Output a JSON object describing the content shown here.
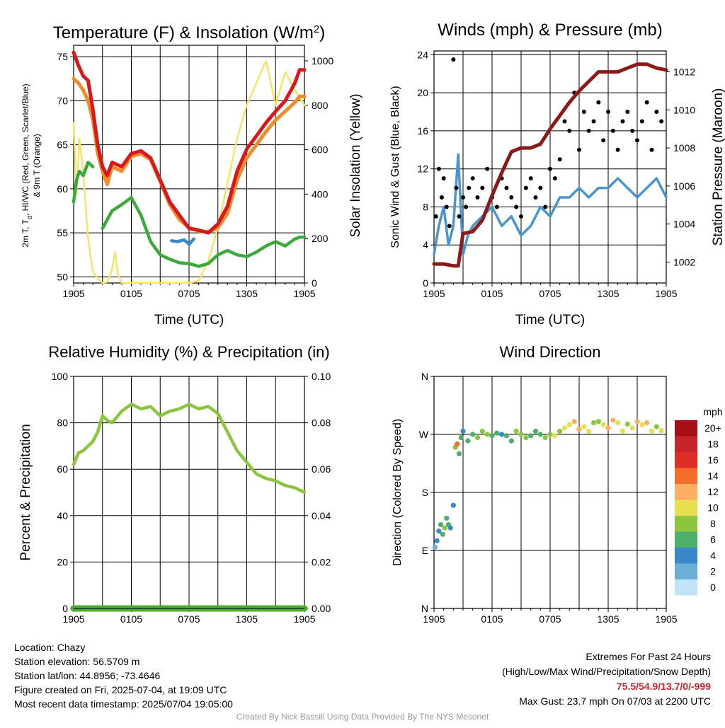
{
  "credit": "Created By Nick Bassill Using Data Provided By The NYS Mesonet",
  "station_info": {
    "location": "Location: Chazy",
    "elevation": "Station elevation: 56.5709 m",
    "latlon": "Station lat/lon: 44.8956; -73.4646",
    "created": "Figure created on Fri, 2025-07-04, at 19:09 UTC",
    "recent": "Most recent data timestamp: 2025/07/04 19:05:00"
  },
  "extremes": {
    "heading": "Extremes For Past 24 Hours",
    "legend": "(High/Low/Max Wind/Precipitation/Snow Depth)",
    "values": "75.5/54.9/13.7/0/-999",
    "gust": "Max Gust: 23.7 mph On 07/03 at 2200 UTC"
  },
  "colors": {
    "temperature": "#d7191c",
    "heat_index": "#f46d2a",
    "dewpoint": "#3aab3a",
    "nine_m_temp": "#f28c28",
    "wind_chill": "#3a87c9",
    "insolation": "#f7e36b",
    "sonic_wind": "#4a95d0",
    "gust": "#000000",
    "pressure": "#8b1a1a",
    "humidity": "#8cc63f",
    "precipitation": "#4caf2f"
  },
  "chart_data": [
    {
      "type": "line",
      "title": "Temperature (F) & Insolation (W/m²)",
      "xlabel": "Time (UTC)",
      "ylabel": "2m T, T_d, HI/WC (Red, Green, Scarlet/Blue) & 9m T (Orange)",
      "y2label": "Solar Insolation (Yellow)",
      "x_ticks": [
        "1905",
        "0105",
        "0705",
        "1305",
        "1905"
      ],
      "y_ticks": [
        50,
        55,
        60,
        65,
        70,
        75
      ],
      "y2_ticks": [
        0,
        200,
        400,
        600,
        800,
        1000
      ],
      "ylim": [
        49.3,
        76.3
      ],
      "y2lim": [
        0,
        1070
      ],
      "xlim": [
        0,
        24
      ],
      "series": [
        {
          "name": "2m Temperature",
          "axis": "y",
          "x": [
            0,
            0.5,
            1,
            1.5,
            2,
            2.5,
            3,
            3.5,
            4,
            5,
            6,
            7,
            8,
            9,
            10,
            11,
            12,
            13,
            14,
            15,
            16,
            17,
            18,
            19,
            20,
            21,
            22,
            23,
            23.5,
            24
          ],
          "values": [
            75.5,
            74,
            72.8,
            72.3,
            69,
            65,
            62.5,
            61.5,
            63,
            62.5,
            64,
            64.3,
            63.5,
            61,
            58.5,
            57,
            55.5,
            55.3,
            55,
            56,
            58,
            62,
            64.5,
            66,
            67.5,
            68.8,
            70,
            72,
            73.5,
            73.5
          ]
        },
        {
          "name": "9m Temperature",
          "axis": "y",
          "x": [
            0,
            0.5,
            1,
            1.5,
            2,
            2.5,
            3,
            3.5,
            4,
            5,
            6,
            7,
            8,
            9,
            10,
            11,
            12,
            13,
            14,
            15,
            16,
            17,
            18,
            19,
            20,
            21,
            22,
            23,
            23.5,
            24
          ],
          "values": [
            72.5,
            72,
            71.2,
            70,
            67.8,
            64,
            62,
            60.5,
            62.5,
            62,
            63.7,
            64,
            63.3,
            60.8,
            58.2,
            56.5,
            55.6,
            55.2,
            55.1,
            55.6,
            57.2,
            61,
            63.5,
            65,
            66.5,
            67.8,
            68.8,
            69.8,
            70.5,
            70.5
          ]
        },
        {
          "name": "2m Dewpoint",
          "axis": "y",
          "x": [
            0,
            0.3,
            0.6,
            1,
            1.5,
            2,
            2.6,
            3,
            3.5,
            4,
            5,
            6,
            7,
            8,
            9,
            10,
            11,
            12,
            13,
            14,
            15,
            16,
            17,
            18,
            19,
            20,
            21,
            22,
            23,
            23.5,
            24
          ],
          "values": [
            58.5,
            61,
            62,
            61.5,
            63,
            62.5,
            null,
            55.5,
            56.5,
            57.5,
            58.2,
            59,
            57,
            54,
            52.5,
            52,
            51.6,
            51.5,
            51.2,
            51.5,
            52.5,
            53,
            52.5,
            52.3,
            52.8,
            53.5,
            54,
            53.5,
            54.3,
            54.5,
            54.5
          ]
        },
        {
          "name": "Heat Index / Wind Chill",
          "axis": "y",
          "x": [
            10.2,
            10.8,
            11.5,
            12,
            12.5
          ],
          "values": [
            54.1,
            54,
            54.2,
            53.7,
            54.3
          ]
        },
        {
          "name": "Solar Insolation",
          "axis": "y2",
          "x": [
            0,
            0.3,
            0.6,
            1,
            1.5,
            2,
            2.5,
            3,
            3.5,
            4,
            4.3,
            4.6,
            5,
            6,
            7,
            8,
            9,
            10,
            11,
            12,
            13,
            14,
            15,
            16,
            17,
            18,
            19,
            20,
            21,
            22,
            23,
            24
          ],
          "values": [
            720,
            400,
            650,
            500,
            200,
            50,
            20,
            0,
            5,
            60,
            140,
            40,
            0,
            0,
            0,
            0,
            0,
            0,
            0,
            0,
            10,
            100,
            250,
            450,
            650,
            800,
            900,
            1000,
            800,
            950,
            870,
            800
          ]
        }
      ]
    },
    {
      "type": "line",
      "title": "Winds (mph) & Pressure (mb)",
      "xlabel": "Time (UTC)",
      "ylabel": "Sonic Wind & Gust (Blue, Black)",
      "y2label": "Station Pressure (Maroon)",
      "x_ticks": [
        "1905",
        "0105",
        "0705",
        "1305",
        "1905"
      ],
      "y_ticks": [
        0,
        4,
        8,
        12,
        16,
        20,
        24
      ],
      "y2_ticks": [
        1002,
        1004,
        1006,
        1008,
        1010,
        1012
      ],
      "ylim": [
        0,
        24.4
      ],
      "y2lim": [
        1000.9,
        1013.1
      ],
      "xlim": [
        0,
        24
      ],
      "series": [
        {
          "name": "Sonic Wind",
          "axis": "y",
          "x": [
            0,
            0.5,
            1,
            1.5,
            2,
            2.5,
            3,
            3.5,
            4,
            5,
            6,
            7,
            8,
            9,
            10,
            11,
            12,
            13,
            14,
            15,
            16,
            17,
            18,
            19,
            20,
            21,
            22,
            23,
            24
          ],
          "values": [
            3,
            6,
            8,
            4,
            6,
            13.5,
            3,
            5,
            6,
            7,
            8,
            6,
            7,
            5,
            6,
            8,
            7,
            9,
            9,
            10,
            9,
            10,
            10,
            11,
            10,
            9,
            10,
            11,
            9
          ]
        },
        {
          "name": "Gust",
          "axis": "y",
          "x": [
            0.2,
            0.5,
            0.8,
            1,
            1.3,
            1.6,
            2,
            2.3,
            2.6,
            3,
            3.3,
            3.6,
            4,
            4.5,
            5,
            5.5,
            6,
            6.5,
            7,
            7.5,
            8,
            8.5,
            9,
            9.5,
            10,
            10.5,
            11,
            11.5,
            12,
            12.5,
            13,
            13.5,
            14,
            14.5,
            15,
            15.5,
            16,
            16.5,
            17,
            17.5,
            18,
            18.5,
            19,
            19.5,
            20,
            20.5,
            21,
            21.5,
            22,
            22.5,
            23,
            23.5
          ],
          "values": [
            7,
            12,
            9,
            11,
            8,
            6,
            23.5,
            10,
            7,
            9,
            8,
            10,
            11,
            9,
            10,
            12,
            9,
            8,
            11,
            10,
            9,
            8,
            7,
            10,
            11,
            9,
            10,
            8,
            12,
            11,
            13,
            17,
            16,
            20,
            14,
            18,
            16,
            17,
            19,
            15,
            18,
            16,
            14,
            17,
            18,
            16,
            15,
            17,
            19,
            14,
            18,
            17
          ]
        },
        {
          "name": "Station Pressure",
          "axis": "y2",
          "x": [
            0,
            1,
            2,
            2.5,
            3,
            4,
            5,
            6,
            7,
            8,
            9,
            10,
            11,
            12,
            13,
            14,
            15,
            16,
            17,
            18,
            19,
            20,
            21,
            22,
            23,
            24
          ],
          "values": [
            1001.9,
            1001.9,
            1001.8,
            1001.8,
            1003.5,
            1003.6,
            1004.2,
            1005.5,
            1006.7,
            1007.8,
            1008,
            1008,
            1008.2,
            1009,
            1009.7,
            1010.4,
            1011,
            1011.5,
            1012,
            1012,
            1012,
            1012.2,
            1012.4,
            1012.4,
            1012.2,
            1012.1
          ]
        }
      ]
    },
    {
      "type": "line",
      "title": "Relative Humidity (%) & Precipitation (in)",
      "xlabel": "",
      "ylabel": "Percent & Precipitation",
      "x_ticks": [
        "1905",
        "0105",
        "0705",
        "1305",
        "1905"
      ],
      "y_ticks": [
        0,
        20,
        40,
        60,
        80,
        100
      ],
      "y2_ticks": [
        "0.00",
        "0.02",
        "0.04",
        "0.06",
        "0.08",
        "0.10"
      ],
      "ylim": [
        0,
        100
      ],
      "y2lim": [
        0,
        0.1
      ],
      "xlim": [
        0,
        24
      ],
      "series": [
        {
          "name": "Relative Humidity",
          "axis": "y",
          "x": [
            0,
            0.5,
            1,
            1.5,
            2,
            2.5,
            3,
            3.5,
            4,
            5,
            6,
            7,
            8,
            9,
            10,
            11,
            12,
            13,
            14,
            15,
            16,
            17,
            18,
            19,
            20,
            21,
            22,
            23,
            24
          ],
          "values": [
            62,
            67,
            68,
            70,
            72,
            76,
            83,
            81,
            80,
            85,
            88,
            86,
            87,
            83,
            85,
            86,
            88,
            86,
            87,
            84,
            76,
            68,
            63,
            58,
            56,
            55,
            53,
            52,
            50
          ]
        },
        {
          "name": "Precipitation",
          "axis": "y2",
          "x": [
            0,
            24
          ],
          "values": [
            0,
            0
          ]
        }
      ]
    },
    {
      "type": "scatter",
      "title": "Wind Direction",
      "xlabel": "",
      "ylabel": "Direction (Colored By Speed)",
      "x_ticks": [
        "1905",
        "0105",
        "0705",
        "1305",
        "1905"
      ],
      "y_ticks": [
        "N",
        "E",
        "S",
        "W",
        "N"
      ],
      "ylim": [
        0,
        360
      ],
      "xlim": [
        0,
        24
      ],
      "colorbar": {
        "title": "mph",
        "labels": [
          "20+",
          "18",
          "16",
          "14",
          "12",
          "10",
          "8",
          "6",
          "4",
          "2",
          "0"
        ],
        "colors": [
          "#a50f15",
          "#c8242b",
          "#de2d26",
          "#f46d2a",
          "#fdae61",
          "#e6e050",
          "#8cc63f",
          "#4caf6a",
          "#3a87c9",
          "#6baed6",
          "#bfe3f7"
        ]
      },
      "series": [
        {
          "name": "Direction",
          "x": [
            0.1,
            0.3,
            0.5,
            0.7,
            0.9,
            1.1,
            1.3,
            1.5,
            1.7,
            2,
            2.2,
            2.4,
            2.6,
            2.8,
            3,
            3.5,
            4,
            4.5,
            5,
            5.5,
            6,
            6.5,
            7,
            7.5,
            8,
            8.5,
            9,
            9.5,
            10,
            10.5,
            11,
            11.5,
            12,
            12.5,
            13,
            13.5,
            14,
            14.5,
            15,
            15.5,
            16,
            16.5,
            17,
            17.5,
            18,
            18.5,
            19,
            19.5,
            20,
            20.5,
            21,
            21.5,
            22,
            22.5,
            23,
            23.5
          ],
          "values": [
            95,
            105,
            120,
            130,
            115,
            125,
            140,
            130,
            125,
            160,
            250,
            255,
            240,
            265,
            275,
            260,
            270,
            265,
            275,
            270,
            268,
            272,
            270,
            268,
            260,
            275,
            270,
            265,
            268,
            275,
            270,
            265,
            270,
            268,
            275,
            280,
            285,
            290,
            278,
            282,
            275,
            288,
            290,
            285,
            280,
            292,
            288,
            275,
            286,
            280,
            290,
            285,
            288,
            275,
            282,
            276
          ],
          "speeds": [
            2,
            3,
            4,
            5,
            6,
            7,
            6,
            5,
            4,
            3,
            8,
            14,
            6,
            5,
            4,
            5,
            6,
            7,
            8,
            7,
            6,
            5,
            4,
            5,
            6,
            7,
            8,
            7,
            6,
            5,
            6,
            7,
            8,
            9,
            8,
            9,
            10,
            11,
            12,
            10,
            9,
            8,
            7,
            10,
            11,
            12,
            10,
            9,
            8,
            9,
            11,
            10,
            12,
            9,
            8,
            10
          ]
        }
      ]
    }
  ]
}
